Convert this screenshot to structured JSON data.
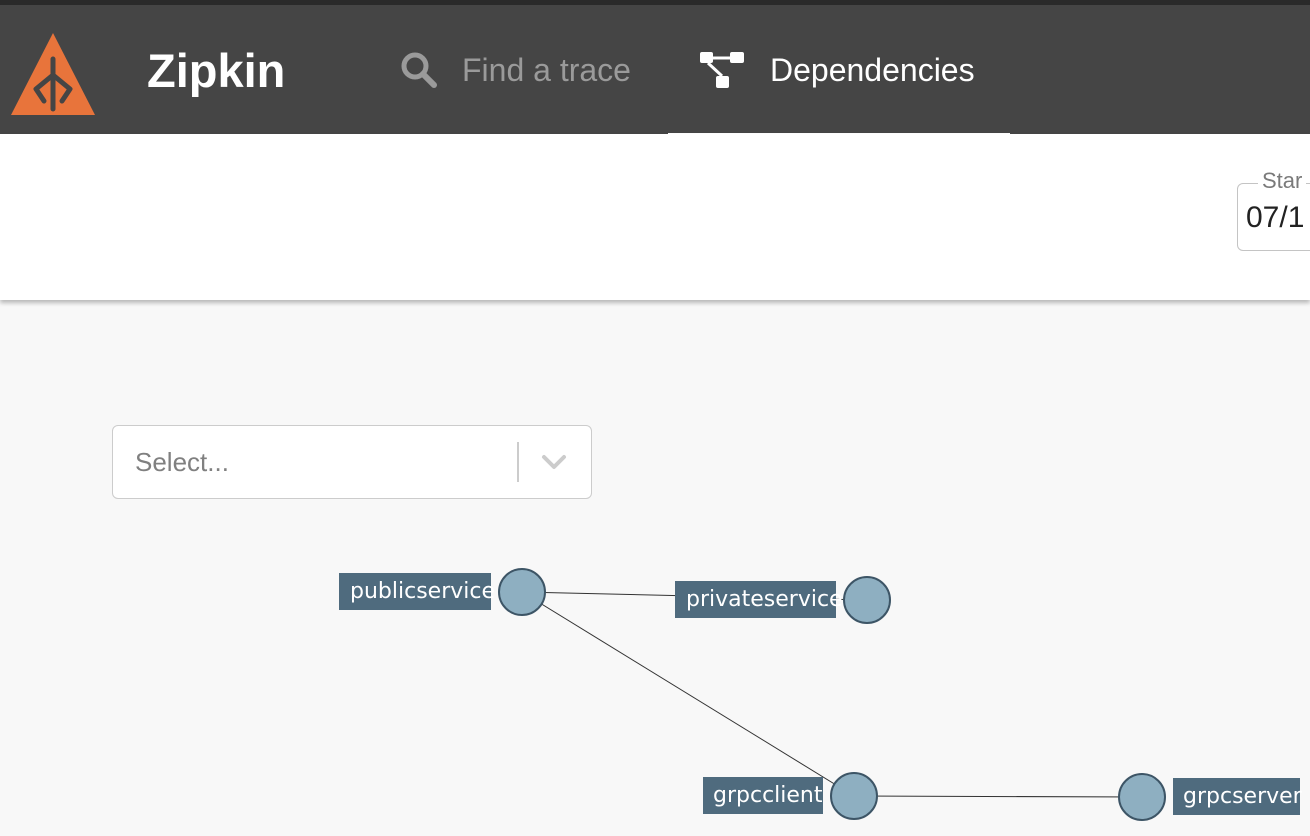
{
  "app": {
    "brand": "Zipkin",
    "logo_icon": "zipkin-logo-icon",
    "brand_color": "#e8743b"
  },
  "nav": {
    "tabs": [
      {
        "label": "Find a trace",
        "icon": "search-icon",
        "active": false
      },
      {
        "label": "Dependencies",
        "icon": "dependencies-icon",
        "active": true
      }
    ]
  },
  "toolbar": {
    "start_time": {
      "label": "Star",
      "value": "07/1"
    }
  },
  "filter": {
    "placeholder": "Select...",
    "icon": "chevron-down-icon"
  },
  "graph": {
    "nodes": [
      {
        "id": "publicservice",
        "label": "publicservice"
      },
      {
        "id": "privateservice",
        "label": "privateservice"
      },
      {
        "id": "grpcclient",
        "label": "grpcclient"
      },
      {
        "id": "grpcserver",
        "label": "grpcserver"
      }
    ],
    "edges": [
      {
        "from": "publicservice",
        "to": "privateservice"
      },
      {
        "from": "publicservice",
        "to": "grpcclient"
      },
      {
        "from": "grpcclient",
        "to": "grpcserver"
      }
    ],
    "colors": {
      "node_fill": "#8eafc1",
      "label_bg": "#4f6b7e"
    }
  }
}
